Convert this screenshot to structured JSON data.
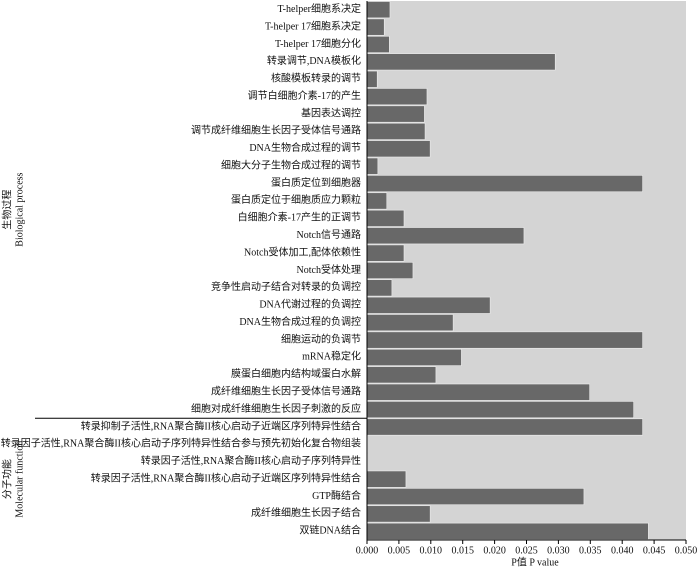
{
  "chart_data": {
    "type": "bar",
    "orientation": "horizontal",
    "x_label": "P值 P value",
    "xlim": [
      0,
      0.05
    ],
    "xticks": [
      {
        "value": 0,
        "label": "0.000"
      },
      {
        "value": 0.005,
        "label": "0.005"
      },
      {
        "value": 0.01,
        "label": "0.010"
      },
      {
        "value": 0.015,
        "label": "0.015"
      },
      {
        "value": 0.02,
        "label": "0.020"
      },
      {
        "value": 0.025,
        "label": "0.025"
      },
      {
        "value": 0.03,
        "label": "0.030"
      },
      {
        "value": 0.035,
        "label": "0.035"
      },
      {
        "value": 0.04,
        "label": "0.040"
      },
      {
        "value": 0.045,
        "label": "0.045"
      },
      {
        "value": 0.05,
        "label": "0.050"
      }
    ],
    "bar_color": "#686868",
    "background": "#d4d4d4",
    "groups": [
      {
        "name": "生物过程",
        "name_en": "Biological process",
        "categories": [
          "T-helper细胞系决定",
          "T-helper 17细胞系决定",
          "T-helper 17细胞分化",
          "转录调节,DNA模板化",
          "核酸模板转录的调节",
          "调节白细胞介素-17的产生",
          "基因表达调控",
          "调节成纤维细胞生长因子受体信号通路",
          "DNA生物合成过程的调节",
          "细胞大分子生物合成过程的调节",
          "蛋白质定位到细胞器",
          "蛋白质定位于细胞质应力颗粒",
          "白细胞介素-17产生的正调节",
          "Notch信号通路",
          "Notch受体加工,配体依赖性",
          "Notch受体处理",
          "竞争性启动子结合对转录的负调控",
          "DNA代谢过程的负调控",
          "DNA生物合成过程的负调控",
          "细胞运动的负调节",
          "mRNA稳定化",
          "膜蛋白细胞内结构域蛋白水解",
          "成纤维细胞生长因子受体信号通路",
          "细胞对成纤维细胞生长因子刺激的反应"
        ],
        "values": [
          0.0036,
          0.0027,
          0.0035,
          0.0295,
          0.0016,
          0.0094,
          0.009,
          0.0091,
          0.0099,
          0.0017,
          0.0432,
          0.0031,
          0.0058,
          0.0246,
          0.0058,
          0.0072,
          0.0039,
          0.0193,
          0.0135,
          0.0432,
          0.0148,
          0.0108,
          0.0349,
          0.0418
        ]
      },
      {
        "name": "分子功能",
        "name_en": "Molecular function",
        "categories": [
          "转录抑制子活性,RNA聚合酶II核心启动子近端区序列特异性结合",
          "转录因子活性,RNA聚合酶II核心启动子序列特异性结合参与预先初始化复合物组装",
          "转录因子活性,RNA聚合酶II核心启动子序列特异性",
          "转录因子活性,RNA聚合酶II核心启动子近端区序列特异性结合",
          "GTP酶结合",
          "成纤维细胞生长因子结合",
          "双链DNA结合"
        ],
        "values": [
          0.0432,
          0.0001,
          0.0001,
          0.0061,
          0.034,
          0.0099,
          0.0441
        ]
      }
    ]
  }
}
